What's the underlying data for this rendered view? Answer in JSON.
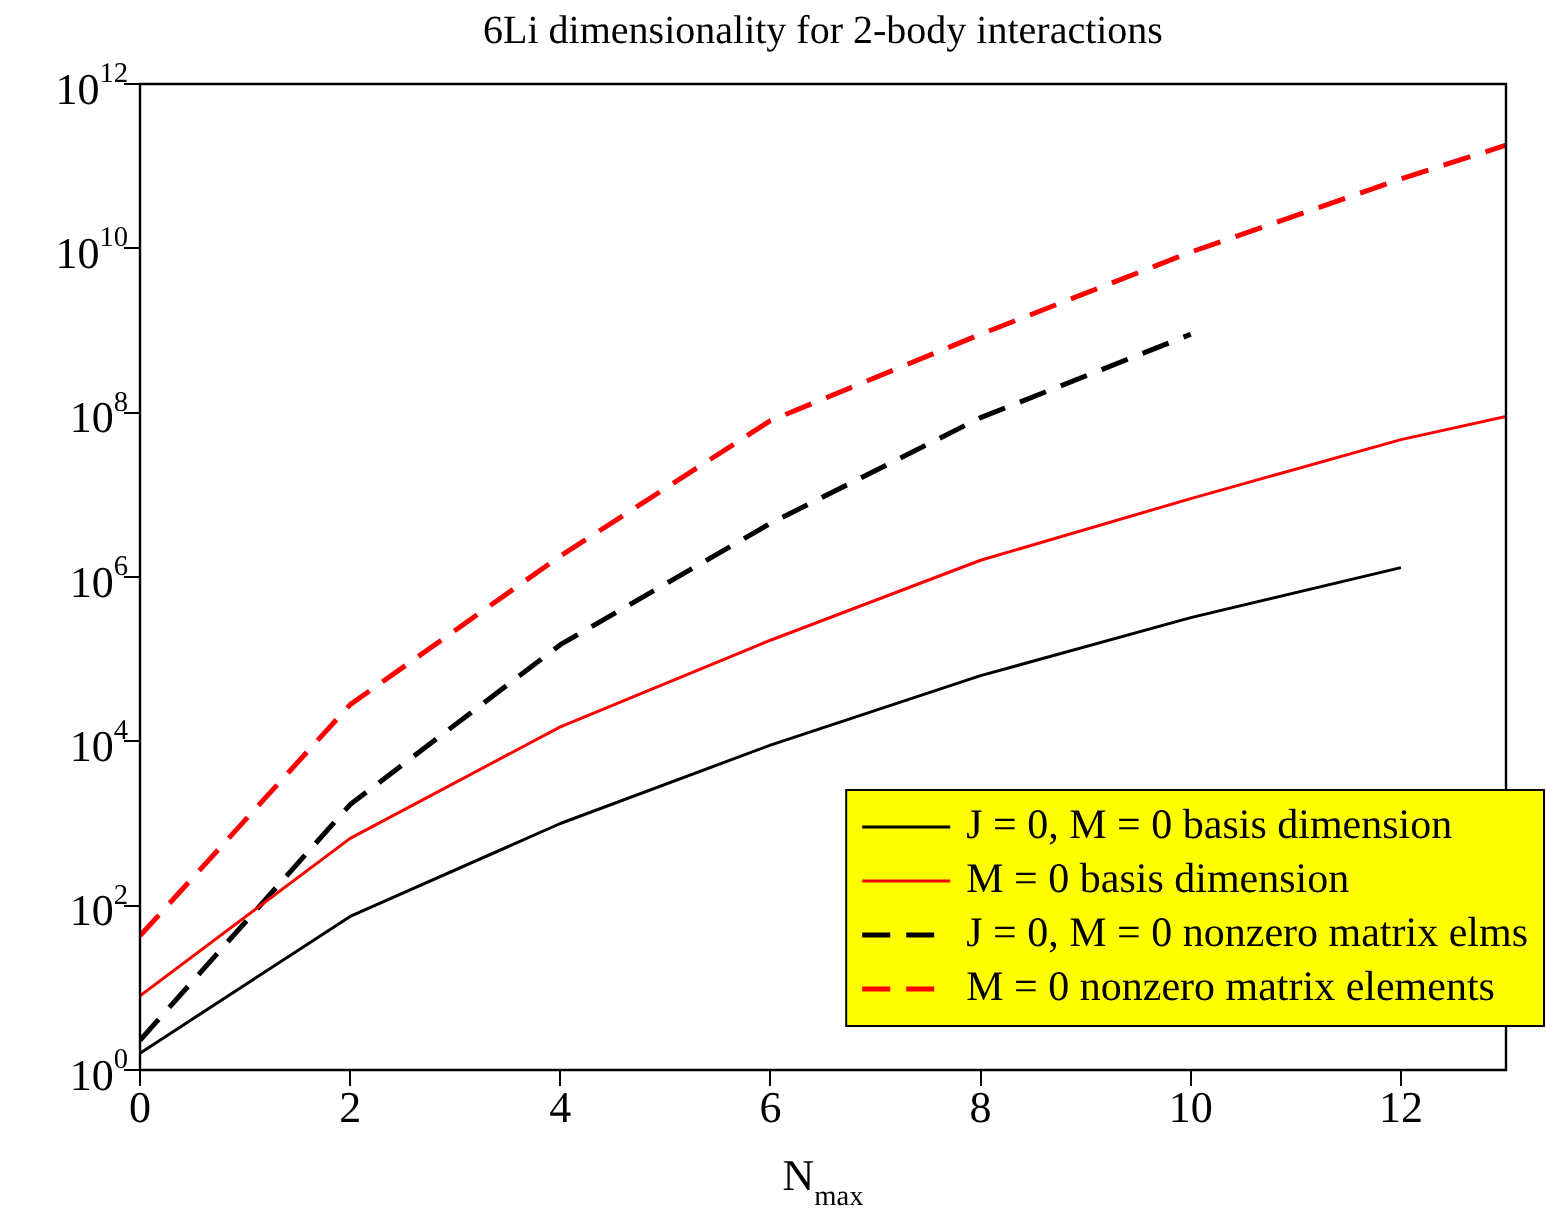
{
  "chart_data": {
    "type": "line",
    "title": "6Li dimensionality for 2-body interactions",
    "xlabel": "N$_{max}$",
    "x": [
      0,
      2,
      4,
      6,
      8,
      10,
      12,
      13
    ],
    "series": [
      {
        "name": "J = 0, M = 0 basis dimension",
        "color": "#000000",
        "line_style": "solid",
        "values": [
          1.6,
          74,
          1000,
          9000,
          63000,
          320000,
          1300000,
          null
        ]
      },
      {
        "name": "M = 0 basis dimension",
        "color": "#ff0000",
        "line_style": "solid",
        "values": [
          8,
          660,
          15000,
          170000,
          1600000,
          9000000,
          47000000,
          90000000
        ]
      },
      {
        "name": "J = 0, M = 0 nonzero matrix elms",
        "color": "#000000",
        "line_style": "dashed",
        "values": [
          2.3,
          1700,
          150000,
          4500000,
          87000000,
          900000000,
          null,
          null
        ]
      },
      {
        "name": "M = 0 nonzero matrix elements",
        "color": "#ff0000",
        "line_style": "dashed",
        "values": [
          43,
          28000,
          1800000,
          80000000,
          900000000,
          9000000000,
          70000000000,
          180000000000
        ]
      }
    ],
    "log": "y",
    "xlim": [
      0,
      13
    ],
    "xticks": [
      0,
      2,
      4,
      6,
      8,
      10,
      12
    ],
    "ylim": [
      1,
      1000000000000
    ],
    "yticks": [
      {
        "value": 1,
        "label": "10$^{0}$"
      },
      {
        "value": 100,
        "label": "10$^{2}$"
      },
      {
        "value": 10000,
        "label": "10$^{4}$"
      },
      {
        "value": 1000000,
        "label": "10$^{6}$"
      },
      {
        "value": 100000000,
        "label": "10$^{8}$"
      },
      {
        "value": 10000000000,
        "label": "10$^{10}$"
      },
      {
        "value": 1000000000000,
        "label": "10$^{12}$"
      }
    ],
    "grid": false,
    "legend": "bottom right",
    "marker": "none"
  }
}
